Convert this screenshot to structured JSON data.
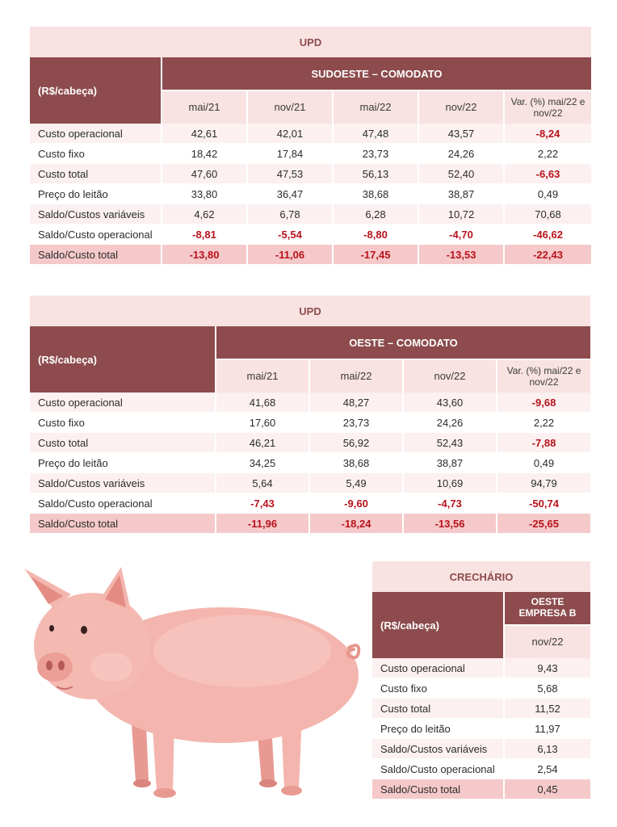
{
  "table1": {
    "title": "UPD",
    "corner": "(R$/cabeça)",
    "group": "SUDOESTE – COMODATO",
    "columns": [
      "mai/21",
      "nov/21",
      "mai/22",
      "nov/22",
      "Var. (%) mai/22 e nov/22"
    ],
    "rows": [
      {
        "label": "Custo operacional",
        "values": [
          "42,61",
          "42,01",
          "47,48",
          "43,57",
          "-8,24"
        ]
      },
      {
        "label": "Custo fixo",
        "values": [
          "18,42",
          "17,84",
          "23,73",
          "24,26",
          "2,22"
        ]
      },
      {
        "label": "Custo total",
        "values": [
          "47,60",
          "47,53",
          "56,13",
          "52,40",
          "-6,63"
        ]
      },
      {
        "label": "Preço do leitão",
        "values": [
          "33,80",
          "36,47",
          "38,68",
          "38,87",
          "0,49"
        ]
      },
      {
        "label": "Saldo/Custos variáveis",
        "values": [
          "4,62",
          "6,78",
          "6,28",
          "10,72",
          "70,68"
        ]
      },
      {
        "label": "Saldo/Custo operacional",
        "values": [
          "-8,81",
          "-5,54",
          "-8,80",
          "-4,70",
          "-46,62"
        ]
      },
      {
        "label": "Saldo/Custo total",
        "values": [
          "-13,80",
          "-11,06",
          "-17,45",
          "-13,53",
          "-22,43"
        ]
      }
    ]
  },
  "table2": {
    "title": "UPD",
    "corner": "(R$/cabeça)",
    "group": "OESTE – COMODATO",
    "columns": [
      "mai/21",
      "mai/22",
      "nov/22",
      "Var. (%) mai/22 e nov/22"
    ],
    "rows": [
      {
        "label": "Custo operacional",
        "values": [
          "41,68",
          "48,27",
          "43,60",
          "-9,68"
        ]
      },
      {
        "label": "Custo fixo",
        "values": [
          "17,60",
          "23,73",
          "24,26",
          "2,22"
        ]
      },
      {
        "label": "Custo total",
        "values": [
          "46,21",
          "56,92",
          "52,43",
          "-7,88"
        ]
      },
      {
        "label": "Preço do leitão",
        "values": [
          "34,25",
          "38,68",
          "38,87",
          "0,49"
        ]
      },
      {
        "label": "Saldo/Custos variáveis",
        "values": [
          "5,64",
          "5,49",
          "10,69",
          "94,79"
        ]
      },
      {
        "label": "Saldo/Custo operacional",
        "values": [
          "-7,43",
          "-9,60",
          "-4,73",
          "-50,74"
        ]
      },
      {
        "label": "Saldo/Custo total",
        "values": [
          "-11,96",
          "-18,24",
          "-13,56",
          "-25,65"
        ]
      }
    ]
  },
  "table3": {
    "title": "CRECHÁRIO",
    "corner": "(R$/cabeça)",
    "group": "OESTE EMPRESA B",
    "columns": [
      "nov/22"
    ],
    "rows": [
      {
        "label": "Custo operacional",
        "values": [
          "9,43"
        ]
      },
      {
        "label": "Custo fixo",
        "values": [
          "5,68"
        ]
      },
      {
        "label": "Custo total",
        "values": [
          "11,52"
        ]
      },
      {
        "label": "Preço do leitão",
        "values": [
          "11,97"
        ]
      },
      {
        "label": "Saldo/Custos variáveis",
        "values": [
          "6,13"
        ]
      },
      {
        "label": "Saldo/Custo operacional",
        "values": [
          "2,54"
        ]
      },
      {
        "label": "Saldo/Custo total",
        "values": [
          "0,45"
        ]
      }
    ]
  },
  "illustration": {
    "icon": "pig-illustration",
    "body_color": "#f3b5ad"
  }
}
